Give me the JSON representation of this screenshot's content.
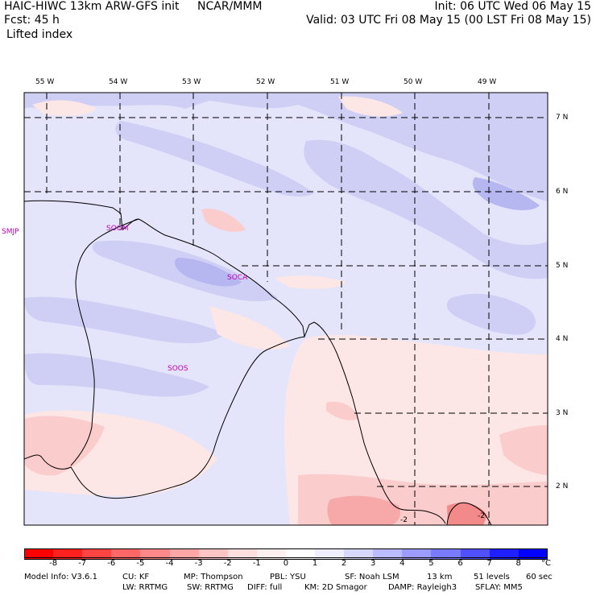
{
  "header": {
    "model": "HAIC-HIWC 13km ARW-GFS init",
    "org": "NCAR/MMM",
    "fcst": "Fcst:   45 h",
    "field": "Lifted index",
    "init": "Init: 06 UTC Wed 06 May 15",
    "valid": "Valid: 03 UTC Fri 08 May 15 (00 LST Fri 08 May 15)"
  },
  "lon_labels": [
    "55 W",
    "54 W",
    "53 W",
    "52 W",
    "51 W",
    "50 W",
    "49 W"
  ],
  "lat_labels": [
    "7 N",
    "6 N",
    "5 N",
    "4 N",
    "3 N",
    "2 N"
  ],
  "stations": [
    "SMJP",
    "SOGM",
    "SOCA",
    "SOOS"
  ],
  "contour_labels": [
    "-2",
    "-2"
  ],
  "colorbar": {
    "labels": [
      "-8",
      "-7",
      "-6",
      "-5",
      "-4",
      "-3",
      "-2",
      "-1",
      "0",
      "1",
      "2",
      "3",
      "4",
      "5",
      "6",
      "7",
      "8"
    ],
    "unit": "°C",
    "colors": [
      "#ff0000",
      "#ff2020",
      "#ff4444",
      "#ff6666",
      "#ff8888",
      "#ffa6a6",
      "#ffc4c4",
      "#ffdede",
      "#fff0f0",
      "#ffffff",
      "#eeeeff",
      "#d8d8ff",
      "#bbbbff",
      "#9c9cff",
      "#7a7aff",
      "#5050ff",
      "#2020ff",
      "#0000ff"
    ]
  },
  "model_info": {
    "line1": [
      "Model Info: V3.6.1",
      "CU: KF",
      "MP: Thompson",
      "PBL: YSU",
      "SF: Noah LSM",
      "13 km",
      "51 levels",
      "60 sec"
    ],
    "line2": [
      "LW: RRTMG",
      "SW: RRTMG",
      "DIFF: full",
      "KM: 2D Smagor",
      "DAMP: Rayleigh3",
      "SFLAY: MM5"
    ]
  },
  "map_colors": {
    "pos1": "#e4e4fa",
    "pos2": "#cfcff6",
    "pos3": "#b6b6f0",
    "neg1": "#fde6e6",
    "neg2": "#fbcccc",
    "neg3": "#f7a8a8",
    "neg4": "#f28a8a"
  }
}
